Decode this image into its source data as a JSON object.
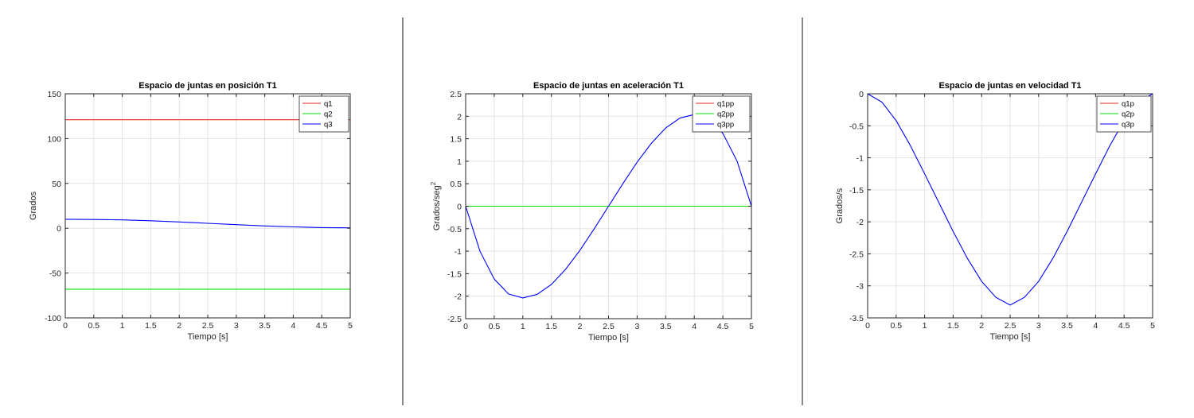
{
  "chart_data": [
    {
      "type": "line",
      "title": "Espacio de juntas en posición T1",
      "xlabel": "Tiempo [s]",
      "ylabel": "Grados",
      "xlim": [
        0,
        5
      ],
      "ylim": [
        -100,
        150
      ],
      "xticks": [
        "0",
        "0.5",
        "1",
        "1.5",
        "2",
        "2.5",
        "3",
        "3.5",
        "4",
        "4.5",
        "5"
      ],
      "yticks": [
        "-100",
        "-50",
        "0",
        "50",
        "100",
        "150"
      ],
      "grid": true,
      "legend_position": "top-right",
      "x": [
        0,
        0.5,
        1,
        1.5,
        2,
        2.5,
        3,
        3.5,
        4,
        4.5,
        5
      ],
      "series": [
        {
          "name": "q1",
          "color": "#e8291d",
          "values": [
            121,
            121,
            121,
            121,
            121,
            121,
            121,
            121,
            121,
            121,
            121
          ]
        },
        {
          "name": "q2",
          "color": "#00e100",
          "values": [
            -68,
            -68,
            -68,
            -68,
            -68,
            -68,
            -68,
            -68,
            -68,
            -68,
            -68
          ]
        },
        {
          "name": "q3",
          "color": "#0000ff",
          "values": [
            10,
            9.8,
            9.3,
            8.3,
            7,
            5.5,
            4,
            2.6,
            1.5,
            0.7,
            0.5
          ]
        }
      ]
    },
    {
      "type": "line",
      "title": "Espacio de juntas en aceleración T1",
      "xlabel": "Tiempo [s]",
      "ylabel": "Grados/seg",
      "ylabel_superscript": "2",
      "xlim": [
        0,
        5
      ],
      "ylim": [
        -2.5,
        2.5
      ],
      "xticks": [
        "0",
        "0.5",
        "1",
        "1.5",
        "2",
        "2.5",
        "3",
        "3.5",
        "4",
        "4.5",
        "5"
      ],
      "yticks": [
        "-2.5",
        "-2",
        "-1.5",
        "-1",
        "-0.5",
        "0",
        "0.5",
        "1",
        "1.5",
        "2",
        "2.5"
      ],
      "grid": true,
      "legend_position": "top-right",
      "x": [
        0,
        0.25,
        0.5,
        0.75,
        1,
        1.25,
        1.5,
        1.75,
        2,
        2.25,
        2.5,
        2.75,
        3,
        3.25,
        3.5,
        3.75,
        4,
        4.25,
        4.5,
        4.75,
        5
      ],
      "series": [
        {
          "name": "q1pp",
          "color": "#e8291d",
          "values": [
            0,
            0,
            0,
            0,
            0,
            0,
            0,
            0,
            0,
            0,
            0,
            0,
            0,
            0,
            0,
            0,
            0,
            0,
            0,
            0,
            0
          ]
        },
        {
          "name": "q2pp",
          "color": "#00e100",
          "values": [
            0,
            0,
            0,
            0,
            0,
            0,
            0,
            0,
            0,
            0,
            0,
            0,
            0,
            0,
            0,
            0,
            0,
            0,
            0,
            0,
            0
          ]
        },
        {
          "name": "q3pp",
          "color": "#0000ff",
          "values": [
            0,
            -1.0,
            -1.62,
            -1.95,
            -2.04,
            -1.96,
            -1.74,
            -1.4,
            -0.98,
            -0.5,
            0,
            0.5,
            0.98,
            1.4,
            1.74,
            1.96,
            2.04,
            1.95,
            1.62,
            1.0,
            0
          ]
        }
      ]
    },
    {
      "type": "line",
      "title": "Espacio de juntas en velocidad T1",
      "xlabel": "Tiempo [s]",
      "ylabel": "Grados/s",
      "xlim": [
        0,
        5
      ],
      "ylim": [
        -3.5,
        0
      ],
      "xticks": [
        "0",
        "0.5",
        "1",
        "1.5",
        "2",
        "2.5",
        "3",
        "3.5",
        "4",
        "4.5",
        "5"
      ],
      "yticks": [
        "-3.5",
        "-3",
        "-2.5",
        "-2",
        "-1.5",
        "-1",
        "-0.5",
        "0"
      ],
      "grid": true,
      "legend_position": "top-right",
      "x": [
        0,
        0.25,
        0.5,
        0.75,
        1,
        1.25,
        1.5,
        1.75,
        2,
        2.25,
        2.5,
        2.75,
        3,
        3.25,
        3.5,
        3.75,
        4,
        4.25,
        4.5,
        4.75,
        5
      ],
      "series": [
        {
          "name": "q1p",
          "color": "#e8291d",
          "values": [
            0,
            0,
            0,
            0,
            0,
            0,
            0,
            0,
            0,
            0,
            0,
            0,
            0,
            0,
            0,
            0,
            0,
            0,
            0,
            0,
            0
          ]
        },
        {
          "name": "q2p",
          "color": "#00e100",
          "values": [
            0,
            0,
            0,
            0,
            0,
            0,
            0,
            0,
            0,
            0,
            0,
            0,
            0,
            0,
            0,
            0,
            0,
            0,
            0,
            0,
            0
          ]
        },
        {
          "name": "q3p",
          "color": "#0000ff",
          "values": [
            0,
            -0.13,
            -0.42,
            -0.81,
            -1.25,
            -1.7,
            -2.15,
            -2.57,
            -2.93,
            -3.18,
            -3.3,
            -3.18,
            -2.93,
            -2.57,
            -2.15,
            -1.7,
            -1.25,
            -0.81,
            -0.42,
            -0.13,
            0
          ]
        }
      ]
    }
  ]
}
